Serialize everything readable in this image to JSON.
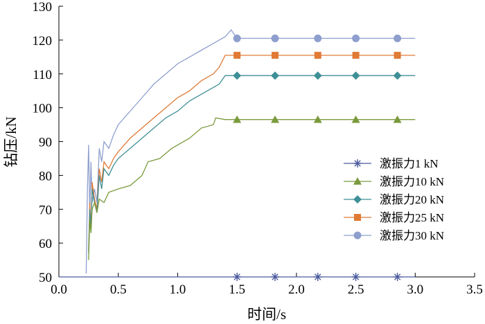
{
  "chart_data": {
    "type": "line",
    "xlabel": "时间/s",
    "ylabel": "钻压/kN",
    "xlim": [
      0,
      3.5
    ],
    "ylim": [
      50,
      130
    ],
    "x_ticks": [
      0,
      0.5,
      1,
      1.5,
      2,
      2.5,
      3,
      3.5
    ],
    "y_ticks": [
      50,
      60,
      70,
      80,
      90,
      100,
      110,
      120,
      130
    ],
    "x_tick_labels": [
      "0.0",
      "0.5",
      "1.0",
      "1.5",
      "2.0",
      "2.5",
      "3.0",
      "3.5"
    ],
    "y_tick_labels": [
      "50",
      "60",
      "70",
      "80",
      "90",
      "100",
      "110",
      "120",
      "130"
    ],
    "grid": false,
    "legend_position": "right",
    "series": [
      {
        "name": "激振力1 kN",
        "color": "#4a5a9c",
        "marker": "star",
        "x": [
          0,
          3.0
        ],
        "y": [
          50,
          50
        ],
        "marker_x": [
          1.5,
          1.82,
          2.18,
          2.5,
          2.85
        ],
        "marker_y": [
          50,
          50,
          50,
          50,
          50
        ]
      },
      {
        "name": "激振力10 kN",
        "color": "#7a9a3c",
        "marker": "triangle",
        "x": [
          0.25,
          0.26,
          0.27,
          0.28,
          0.3,
          0.32,
          0.34,
          0.38,
          0.42,
          0.5,
          0.6,
          0.7,
          0.75,
          0.85,
          0.95,
          1.0,
          1.1,
          1.2,
          1.3,
          1.32,
          1.4,
          1.5,
          1.8,
          2.2,
          2.5,
          3.0
        ],
        "y": [
          55,
          67,
          63,
          70,
          72,
          69,
          73,
          72,
          75,
          76,
          77,
          80,
          84,
          85,
          88,
          89,
          91,
          94,
          95,
          97,
          96.5,
          96.5,
          96.5,
          96.5,
          96.5,
          96.5
        ],
        "marker_x": [
          1.5,
          1.82,
          2.18,
          2.5,
          2.85
        ],
        "marker_y": [
          96.5,
          96.5,
          96.5,
          96.5,
          96.5
        ]
      },
      {
        "name": "激振力20 kN",
        "color": "#3f8f96",
        "marker": "diamond",
        "x": [
          0.25,
          0.26,
          0.27,
          0.28,
          0.3,
          0.32,
          0.34,
          0.36,
          0.38,
          0.42,
          0.46,
          0.5,
          0.6,
          0.7,
          0.8,
          0.9,
          1.0,
          1.1,
          1.2,
          1.3,
          1.35,
          1.4,
          1.5,
          1.8,
          2.2,
          2.5,
          3.0
        ],
        "y": [
          57,
          70,
          63,
          76,
          72,
          69,
          80,
          76,
          82,
          80,
          83,
          85,
          88,
          91,
          94,
          97,
          99,
          102,
          104,
          106,
          107,
          109.5,
          109.5,
          109.5,
          109.5,
          109.5,
          109.5
        ],
        "marker_x": [
          1.5,
          1.82,
          2.18,
          2.5,
          2.85
        ],
        "marker_y": [
          109.5,
          109.5,
          109.5,
          109.5,
          109.5
        ]
      },
      {
        "name": "激振力25 kN",
        "color": "#e07a35",
        "marker": "square",
        "x": [
          0.25,
          0.26,
          0.27,
          0.28,
          0.3,
          0.32,
          0.34,
          0.36,
          0.38,
          0.42,
          0.46,
          0.5,
          0.6,
          0.7,
          0.8,
          0.9,
          1.0,
          1.1,
          1.2,
          1.3,
          1.35,
          1.4,
          1.5,
          1.8,
          2.2,
          2.5,
          3.0
        ],
        "y": [
          58,
          72,
          64,
          78,
          73,
          70,
          82,
          78,
          84,
          82,
          85,
          87,
          91,
          94,
          97,
          100,
          103,
          105,
          108,
          110,
          112,
          115.5,
          115.5,
          115.5,
          115.5,
          115.5,
          115.5
        ],
        "marker_x": [
          1.5,
          1.82,
          2.18,
          2.5,
          2.85
        ],
        "marker_y": [
          115.5,
          115.5,
          115.5,
          115.5,
          115.5
        ]
      },
      {
        "name": "激振力30 kN",
        "color": "#8e9fce",
        "marker": "circle",
        "x": [
          0.23,
          0.24,
          0.25,
          0.26,
          0.27,
          0.28,
          0.3,
          0.32,
          0.34,
          0.36,
          0.38,
          0.42,
          0.46,
          0.5,
          0.6,
          0.7,
          0.8,
          0.9,
          1.0,
          1.1,
          1.2,
          1.3,
          1.35,
          1.4,
          1.45,
          1.5,
          1.8,
          2.2,
          2.5,
          3.0
        ],
        "y": [
          51,
          75,
          89,
          68,
          84,
          72,
          76,
          72,
          88,
          84,
          90,
          88,
          92,
          95,
          99,
          103,
          107,
          110,
          113,
          115,
          117,
          119,
          120,
          121,
          123,
          120.5,
          120.5,
          120.5,
          120.5,
          120.5
        ],
        "marker_x": [
          1.5,
          1.82,
          2.18,
          2.5,
          2.85
        ],
        "marker_y": [
          120.5,
          120.5,
          120.5,
          120.5,
          120.5
        ]
      }
    ]
  }
}
